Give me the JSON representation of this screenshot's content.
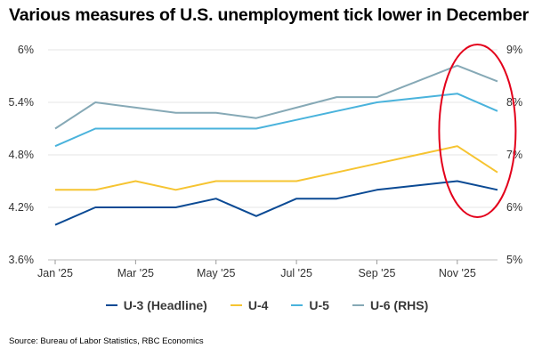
{
  "title": "Various measures of U.S. unemployment tick lower in December",
  "source": "Source: Bureau of Labor Statistics, RBC Economics",
  "chart_data": {
    "type": "line",
    "title": "Various measures of U.S. unemployment tick lower in December",
    "categories": [
      "Jan '25",
      "Feb '25",
      "Mar '25",
      "Apr '25",
      "May '25",
      "Jun '25",
      "Jul '25",
      "Aug '25",
      "Sep '25",
      "Oct '25",
      "Nov '25",
      "Dec '25"
    ],
    "x_tick_labels": [
      "Jan '25",
      "Mar '25",
      "May '25",
      "Jul '25",
      "Sep '25",
      "Nov '25"
    ],
    "y_left": {
      "ticks": [
        "3.6%",
        "4.2%",
        "4.8%",
        "5.4%",
        "6%"
      ],
      "range": [
        3.6,
        6.0
      ]
    },
    "y_right": {
      "ticks": [
        "5%",
        "6%",
        "7%",
        "8%",
        "9%"
      ],
      "range": [
        5,
        9
      ]
    },
    "grid": true,
    "legend_position": "bottom",
    "series": [
      {
        "name": "U-3 (Headline)",
        "axis": "left",
        "color": "#0b4a94",
        "values": [
          4.0,
          4.2,
          4.2,
          4.2,
          4.3,
          4.1,
          4.3,
          4.3,
          4.4,
          4.45,
          4.5,
          4.4
        ]
      },
      {
        "name": "U-4",
        "axis": "left",
        "color": "#f6c431",
        "values": [
          4.4,
          4.4,
          4.5,
          4.4,
          4.5,
          4.5,
          4.5,
          4.6,
          4.7,
          4.8,
          4.9,
          4.6
        ]
      },
      {
        "name": "U-5",
        "axis": "left",
        "color": "#4ab3dc",
        "values": [
          4.9,
          5.1,
          5.1,
          5.1,
          5.1,
          5.1,
          5.2,
          5.3,
          5.4,
          5.45,
          5.5,
          5.3
        ]
      },
      {
        "name": "U-6 (RHS)",
        "axis": "right",
        "color": "#86a9b6",
        "values": [
          7.5,
          8.0,
          7.9,
          7.8,
          7.8,
          7.7,
          7.9,
          8.1,
          8.1,
          8.4,
          8.7,
          8.4
        ]
      }
    ],
    "annotations": [
      {
        "type": "ellipse",
        "color": "#e3001b",
        "around": [
          "Nov '25",
          "Dec '25"
        ]
      }
    ]
  }
}
